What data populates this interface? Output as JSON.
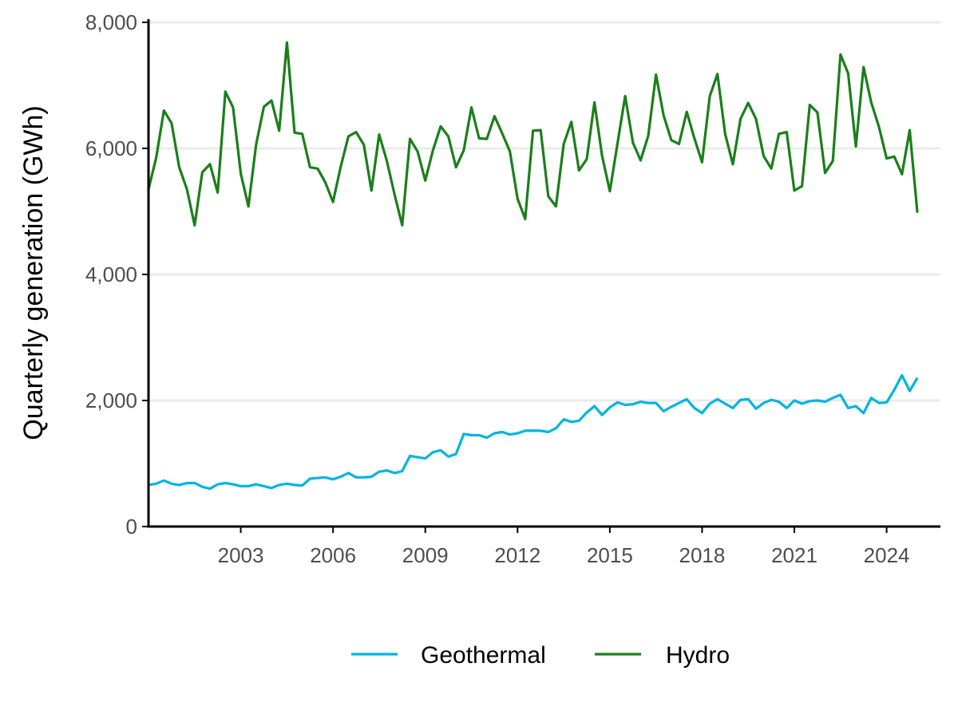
{
  "chart_data": {
    "type": "line",
    "title": "",
    "xlabel": "",
    "ylabel": "Quarterly generation (GWh)",
    "xlim": [
      2000.0,
      2025.75
    ],
    "ylim": [
      0,
      8000
    ],
    "x_ticks": [
      2003,
      2006,
      2009,
      2012,
      2015,
      2018,
      2021,
      2024
    ],
    "x_tick_labels": [
      "2003",
      "2006",
      "2009",
      "2012",
      "2015",
      "2018",
      "2021",
      "2024"
    ],
    "y_ticks": [
      0,
      2000,
      4000,
      6000,
      8000
    ],
    "y_tick_labels": [
      "0",
      "2,000",
      "4,000",
      "6,000",
      "8,000"
    ],
    "grid": "horizontal",
    "legend_position": "bottom",
    "x_start_year": 2000,
    "x_step_years": 0.25,
    "series": [
      {
        "name": "Geothermal",
        "color": "#00b4e0",
        "values": [
          660,
          680,
          730,
          680,
          660,
          690,
          690,
          630,
          600,
          670,
          690,
          670,
          640,
          640,
          670,
          640,
          610,
          660,
          680,
          660,
          650,
          760,
          770,
          780,
          750,
          790,
          850,
          780,
          780,
          790,
          870,
          890,
          850,
          880,
          1120,
          1100,
          1080,
          1180,
          1210,
          1110,
          1150,
          1470,
          1450,
          1450,
          1410,
          1480,
          1500,
          1460,
          1480,
          1520,
          1520,
          1520,
          1500,
          1560,
          1700,
          1660,
          1680,
          1810,
          1910,
          1770,
          1890,
          1970,
          1930,
          1940,
          1980,
          1960,
          1960,
          1830,
          1900,
          1960,
          2020,
          1880,
          1800,
          1950,
          2020,
          1950,
          1880,
          2010,
          2020,
          1870,
          1960,
          2010,
          1980,
          1880,
          2000,
          1950,
          1990,
          2000,
          1980,
          2040,
          2090,
          1880,
          1910,
          1800,
          2040,
          1960,
          1970,
          2170,
          2400,
          2150,
          2360
        ]
      },
      {
        "name": "Hydro",
        "color": "#1a7f1a",
        "values": [
          5350,
          5850,
          6600,
          6400,
          5700,
          5350,
          4780,
          5620,
          5750,
          5300,
          6900,
          6650,
          5600,
          5080,
          6060,
          6660,
          6760,
          6280,
          7680,
          6250,
          6230,
          5700,
          5680,
          5460,
          5150,
          5710,
          6190,
          6260,
          6060,
          5330,
          6220,
          5800,
          5270,
          4780,
          6150,
          5950,
          5490,
          5970,
          6350,
          6190,
          5700,
          5970,
          6650,
          6160,
          6150,
          6510,
          6240,
          5950,
          5200,
          4880,
          6280,
          6290,
          5240,
          5080,
          6070,
          6420,
          5650,
          5830,
          6730,
          5880,
          5320,
          6080,
          6830,
          6090,
          5810,
          6200,
          7170,
          6520,
          6130,
          6070,
          6580,
          6160,
          5780,
          6830,
          7180,
          6230,
          5750,
          6470,
          6720,
          6470,
          5880,
          5680,
          6230,
          6260,
          5330,
          5400,
          6690,
          6570,
          5610,
          5800,
          7490,
          7190,
          6030,
          7290,
          6730,
          6340,
          5840,
          5870,
          5590,
          6290,
          4980
        ]
      }
    ]
  }
}
